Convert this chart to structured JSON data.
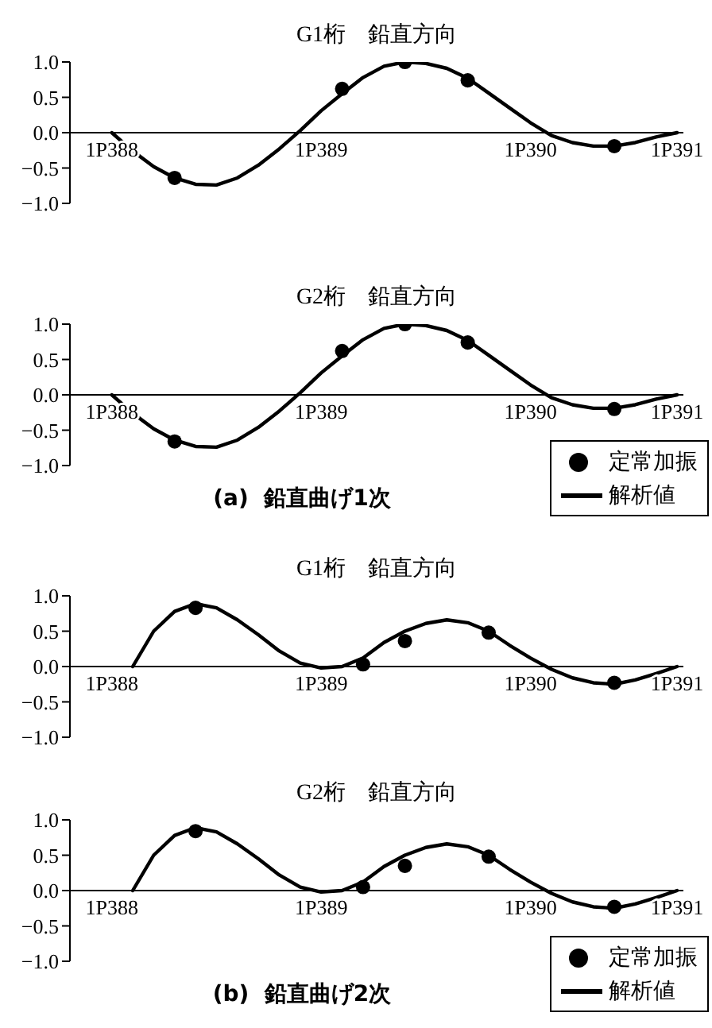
{
  "chart_data": [
    {
      "type": "line",
      "title": "G1桁　鉛直方向",
      "categories": [
        null,
        "1P388",
        null,
        null,
        null,
        null,
        null,
        null,
        null,
        null,
        null,
        "1P389",
        null,
        null,
        null,
        null,
        null,
        null,
        null,
        null,
        null,
        "1P390",
        null,
        null,
        null,
        null,
        null,
        null,
        "1P391"
      ],
      "ylim": [
        -1,
        1
      ],
      "yticks": [
        {
          "value": 1,
          "label": "1.0"
        },
        {
          "value": 0.5,
          "label": "0.5"
        },
        {
          "value": 0,
          "label": "0.0"
        },
        {
          "value": -0.5,
          "label": "−0.5"
        },
        {
          "value": -1,
          "label": "−1.0"
        }
      ],
      "grid": false,
      "legend": false,
      "series": [
        {
          "type": "scatter",
          "color": "#000000",
          "marker": "circle",
          "values": [
            null,
            null,
            null,
            null,
            -0.64,
            null,
            null,
            null,
            null,
            null,
            null,
            null,
            0.62,
            null,
            null,
            1.0,
            null,
            null,
            0.74,
            null,
            null,
            null,
            null,
            null,
            null,
            -0.19,
            null,
            null,
            null
          ]
        },
        {
          "type": "line",
          "color": "#000000",
          "marker": "none",
          "values": [
            null,
            0,
            -0.26,
            -0.48,
            -0.64,
            -0.73,
            -0.74,
            -0.64,
            -0.46,
            -0.23,
            0.03,
            0.31,
            0.55,
            0.78,
            0.94,
            1.0,
            0.98,
            0.91,
            0.77,
            0.56,
            0.35,
            0.14,
            -0.04,
            -0.14,
            -0.19,
            -0.19,
            -0.14,
            -0.06,
            0
          ]
        }
      ]
    },
    {
      "type": "line",
      "title": "G2桁　鉛直方向",
      "categories": [
        null,
        "1P388",
        null,
        null,
        null,
        null,
        null,
        null,
        null,
        null,
        null,
        "1P389",
        null,
        null,
        null,
        null,
        null,
        null,
        null,
        null,
        null,
        "1P390",
        null,
        null,
        null,
        null,
        null,
        null,
        "1P391"
      ],
      "ylim": [
        -1,
        1
      ],
      "yticks": [
        {
          "value": 1,
          "label": "1.0"
        },
        {
          "value": 0.5,
          "label": "0.5"
        },
        {
          "value": 0,
          "label": "0.0"
        },
        {
          "value": -0.5,
          "label": "−0.5"
        },
        {
          "value": -1,
          "label": "−1.0"
        }
      ],
      "grid": false,
      "legend": "bottom right",
      "annotations": [
        "(a)  鉛直曲げ1次"
      ],
      "series": [
        {
          "name": "定常加振",
          "type": "scatter",
          "color": "#000000",
          "marker": "circle",
          "values": [
            null,
            null,
            null,
            null,
            -0.66,
            null,
            null,
            null,
            null,
            null,
            null,
            null,
            0.62,
            null,
            null,
            1.0,
            null,
            null,
            0.74,
            null,
            null,
            null,
            null,
            null,
            null,
            -0.2,
            null,
            null,
            null
          ]
        },
        {
          "name": "解析値",
          "type": "line",
          "color": "#000000",
          "marker": "none",
          "values": [
            null,
            0,
            -0.26,
            -0.48,
            -0.64,
            -0.73,
            -0.74,
            -0.64,
            -0.46,
            -0.23,
            0.03,
            0.31,
            0.55,
            0.78,
            0.94,
            1.0,
            0.98,
            0.91,
            0.77,
            0.56,
            0.35,
            0.14,
            -0.04,
            -0.14,
            -0.19,
            -0.19,
            -0.14,
            -0.06,
            0
          ]
        }
      ]
    },
    {
      "type": "line",
      "title": "G1桁　鉛直方向",
      "categories": [
        null,
        "1P388",
        null,
        null,
        null,
        null,
        null,
        null,
        null,
        null,
        null,
        "1P389",
        null,
        null,
        null,
        null,
        null,
        null,
        null,
        null,
        null,
        "1P390",
        null,
        null,
        null,
        null,
        null,
        null,
        "1P391"
      ],
      "ylim": [
        -1,
        1
      ],
      "yticks": [
        {
          "value": 1,
          "label": "1.0"
        },
        {
          "value": 0.5,
          "label": "0.5"
        },
        {
          "value": 0,
          "label": "0.0"
        },
        {
          "value": -0.5,
          "label": "−0.5"
        },
        {
          "value": -1,
          "label": "−1.0"
        }
      ],
      "grid": false,
      "legend": false,
      "series": [
        {
          "type": "scatter",
          "color": "#000000",
          "marker": "circle",
          "values": [
            null,
            null,
            null,
            null,
            null,
            0.83,
            null,
            null,
            null,
            null,
            null,
            null,
            null,
            0.03,
            null,
            0.36,
            null,
            null,
            null,
            0.48,
            null,
            null,
            null,
            null,
            null,
            -0.23,
            null,
            null,
            null
          ]
        },
        {
          "type": "line",
          "color": "#000000",
          "marker": "none",
          "values": [
            null,
            null,
            0,
            0.5,
            0.78,
            0.89,
            0.83,
            0.66,
            0.45,
            0.22,
            0.05,
            -0.02,
            0,
            0.12,
            0.34,
            0.5,
            0.61,
            0.66,
            0.62,
            0.5,
            0.3,
            0.12,
            -0.04,
            -0.16,
            -0.23,
            -0.25,
            -0.19,
            -0.1,
            0
          ]
        }
      ]
    },
    {
      "type": "line",
      "title": "G2桁　鉛直方向",
      "categories": [
        null,
        "1P388",
        null,
        null,
        null,
        null,
        null,
        null,
        null,
        null,
        null,
        "1P389",
        null,
        null,
        null,
        null,
        null,
        null,
        null,
        null,
        null,
        "1P390",
        null,
        null,
        null,
        null,
        null,
        null,
        "1P391"
      ],
      "ylim": [
        -1,
        1
      ],
      "yticks": [
        {
          "value": 1,
          "label": "1.0"
        },
        {
          "value": 0.5,
          "label": "0.5"
        },
        {
          "value": 0,
          "label": "0.0"
        },
        {
          "value": -0.5,
          "label": "−0.5"
        },
        {
          "value": -1,
          "label": "−1.0"
        }
      ],
      "grid": false,
      "legend": "bottom right",
      "annotations": [
        "(b)  鉛直曲げ2次"
      ],
      "series": [
        {
          "name": "定常加振",
          "type": "scatter",
          "color": "#000000",
          "marker": "circle",
          "values": [
            null,
            null,
            null,
            null,
            null,
            0.84,
            null,
            null,
            null,
            null,
            null,
            null,
            null,
            0.05,
            null,
            0.35,
            null,
            null,
            null,
            0.48,
            null,
            null,
            null,
            null,
            null,
            -0.23,
            null,
            null,
            null
          ]
        },
        {
          "name": "解析値",
          "type": "line",
          "color": "#000000",
          "marker": "none",
          "values": [
            null,
            null,
            0,
            0.5,
            0.78,
            0.89,
            0.83,
            0.66,
            0.45,
            0.22,
            0.05,
            -0.02,
            0,
            0.12,
            0.34,
            0.5,
            0.61,
            0.66,
            0.62,
            0.5,
            0.3,
            0.12,
            -0.04,
            -0.16,
            -0.23,
            -0.25,
            -0.19,
            -0.1,
            0
          ]
        }
      ]
    }
  ]
}
